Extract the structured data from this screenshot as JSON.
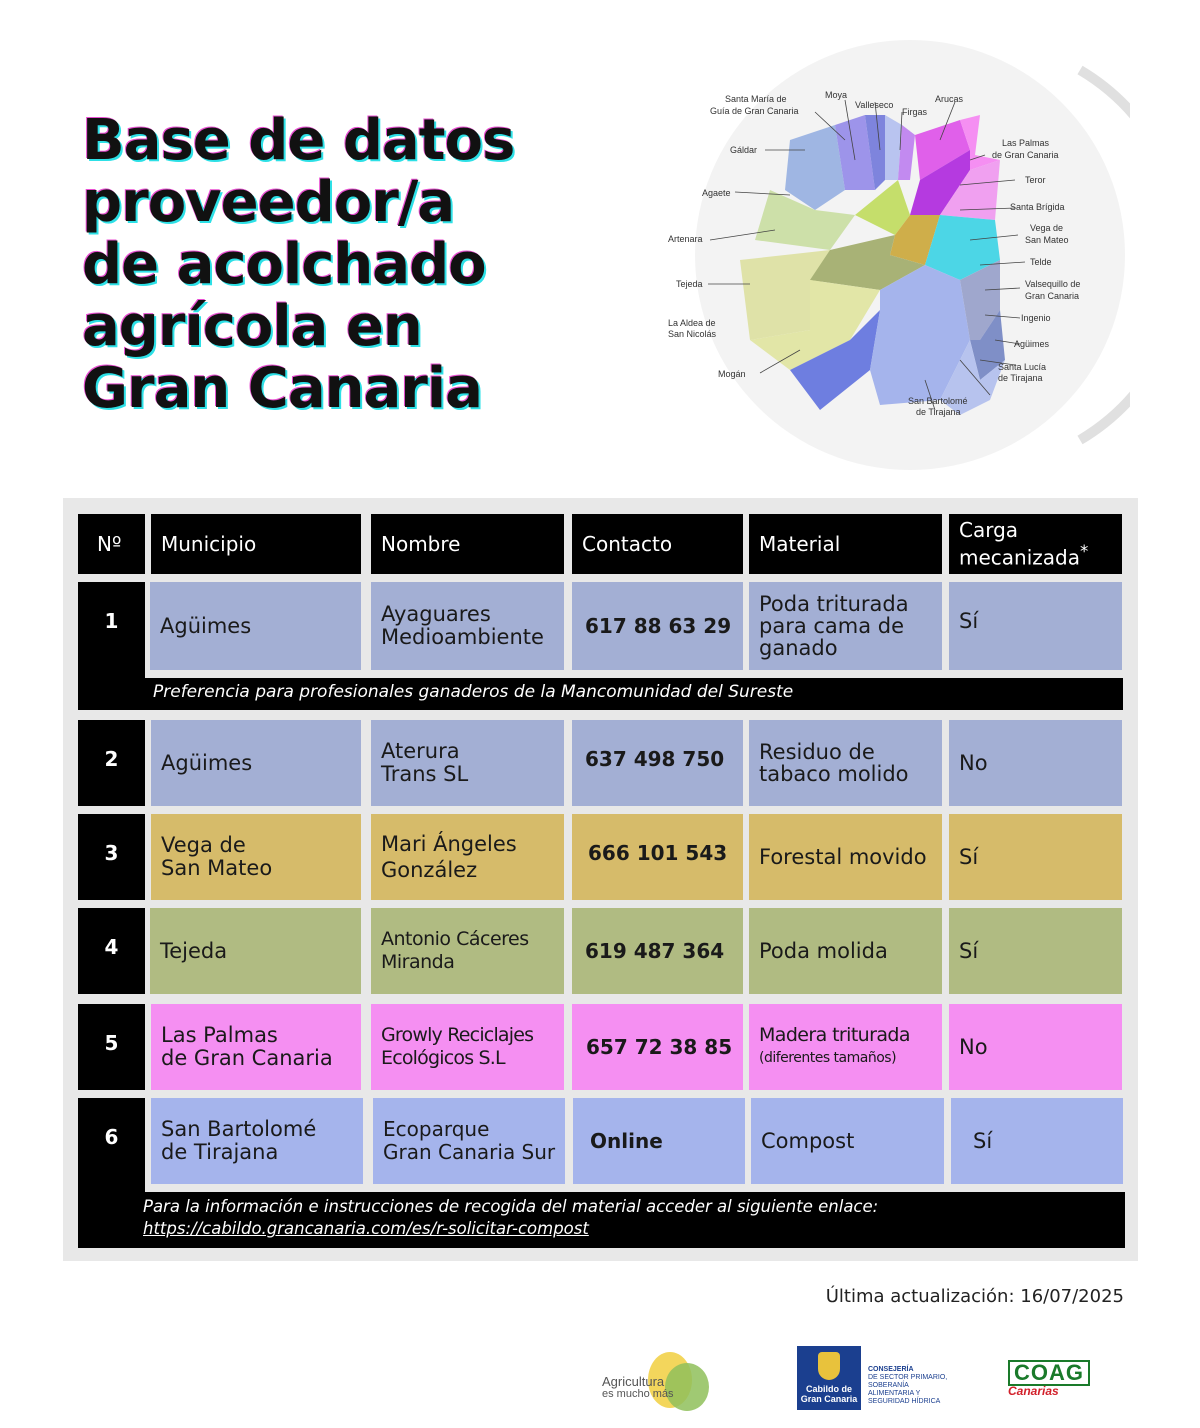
{
  "title": {
    "line1": "Base de datos",
    "line2": "proveedor/a",
    "line3": "de acolchado",
    "line4": "agrícola en",
    "line5": "Gran Canaria"
  },
  "map": {
    "labels": {
      "santa_maria": "Santa María de",
      "santa_maria2": "Guía de Gran Canaria",
      "moya": "Moya",
      "valleseco": "Valleseco",
      "firgas": "Firgas",
      "arucas": "Arucas",
      "galdar": "Gáldar",
      "las_palmas": "Las Palmas",
      "las_palmas2": "de Gran Canaria",
      "teror": "Teror",
      "agaete": "Agaete",
      "santa_brigida": "Santa Brígida",
      "vega": "Vega de",
      "vega2": "San Mateo",
      "artenara": "Artenara",
      "telde": "Telde",
      "tejeda": "Tejeda",
      "valsequillo": "Valsequillo de",
      "valsequillo2": "Gran Canaria",
      "aldea": "La Aldea de",
      "aldea2": "San Nicolás",
      "ingenio": "Ingenio",
      "aguimes": "Agüimes",
      "mogan": "Mogán",
      "santa_lucia": "Santa Lucía",
      "santa_lucia2": "de Tirajana",
      "san_bartolome": "San Bartolomé",
      "san_bartolome2": "de Tirajana"
    }
  },
  "table": {
    "headers": {
      "n": "Nº",
      "municipio": "Municipio",
      "nombre": "Nombre",
      "contacto": "Contacto",
      "material": "Material",
      "carga1": "Carga",
      "carga2": "mecanizada",
      "asterisk": "*"
    },
    "rows": [
      {
        "n": "1",
        "municipio": [
          "Agüimes"
        ],
        "nombre": [
          "Ayaguares",
          "Medioambiente"
        ],
        "contacto": "617 88 63 29",
        "material": [
          "Poda triturada",
          "para cama de",
          "ganado"
        ],
        "carga": "Sí"
      },
      {
        "n": "2",
        "municipio": [
          "Agüimes"
        ],
        "nombre": [
          "Aterura",
          "Trans SL"
        ],
        "contacto": "637 498 750",
        "material": [
          "Residuo de",
          "tabaco molido"
        ],
        "carga": "No"
      },
      {
        "n": "3",
        "municipio": [
          "Vega de",
          "San Mateo"
        ],
        "nombre": [
          "Mari Ángeles",
          "González"
        ],
        "contacto": "666 101 543",
        "material": [
          "Forestal movido"
        ],
        "carga": "Sí"
      },
      {
        "n": "4",
        "municipio": [
          "Tejeda"
        ],
        "nombre": [
          "Antonio Cáceres",
          "Miranda"
        ],
        "contacto": "619 487 364",
        "material": [
          "Poda molida"
        ],
        "carga": "Sí"
      },
      {
        "n": "5",
        "municipio": [
          "Las Palmas",
          "de Gran Canaria"
        ],
        "nombre": [
          "Growly Reciclajes",
          "Ecológicos S.L"
        ],
        "contacto": "657 72 38 85",
        "material": [
          "Madera triturada",
          "(diferentes tamaños)"
        ],
        "carga": "No"
      },
      {
        "n": "6",
        "municipio": [
          "San Bartolomé",
          "de Tirajana"
        ],
        "nombre": [
          "Ecoparque",
          "Gran Canaria Sur"
        ],
        "contacto": "Online",
        "material": [
          "Compost"
        ],
        "carga": "Sí"
      }
    ],
    "note1": "Preferencia para profesionales ganaderos de la Mancomunidad del Sureste",
    "note6_line1": "Para la información e instrucciones de recogida del material acceder al siguiente enlace:",
    "note6_link": "https://cabildo.grancanaria.com/es/r-solicitar-compost"
  },
  "updated": "Última actualización: 16/07/2025",
  "logos": {
    "agri1": "Agricultura",
    "agri2": "es mucho más",
    "cabildo1": "Cabildo de",
    "cabildo2": "Gran Canaria",
    "cons1": "CONSEJERÍA",
    "cons2": "DE SECTOR PRIMARIO,",
    "cons3": "SOBERANÍA",
    "cons4": "ALIMENTARIA Y",
    "cons5": "SEGURIDAD HÍDRICA",
    "coag": "COAG",
    "coag_sub": "Canarias"
  }
}
